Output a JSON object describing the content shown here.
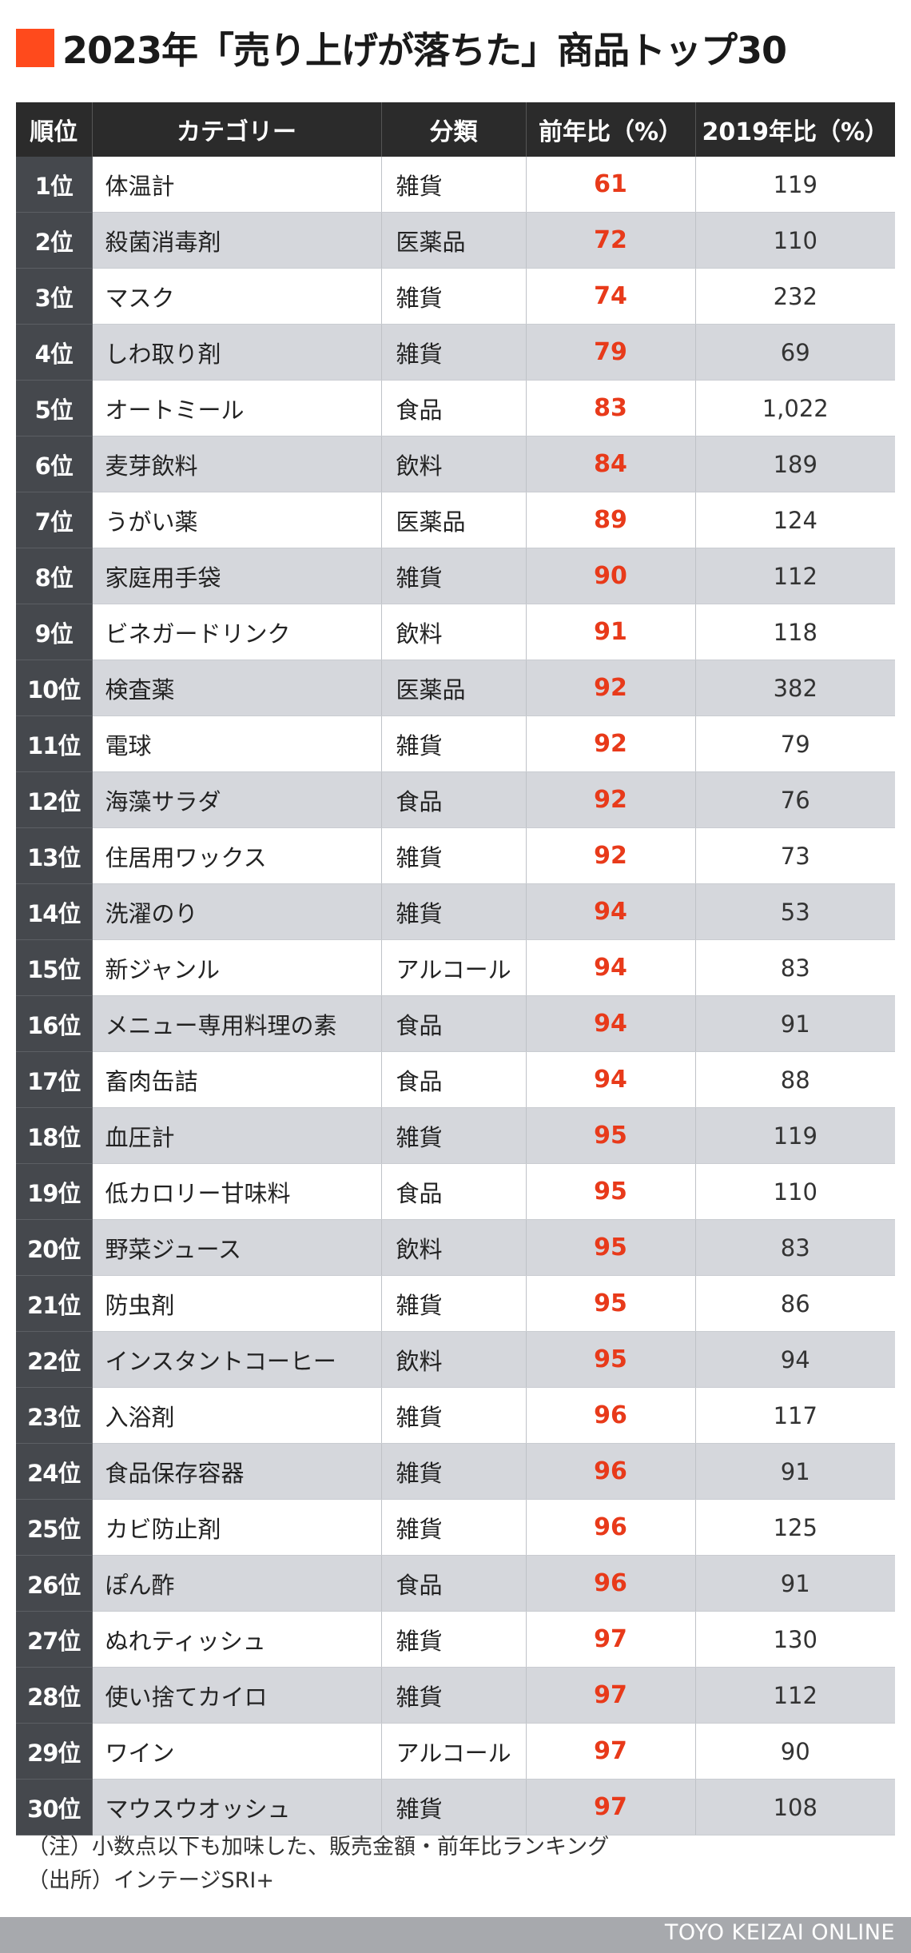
{
  "title": "2023年「売り上げが落ちた」商品トップ30",
  "table": {
    "headers": [
      "順位",
      "カテゴリー",
      "分類",
      "前年比（%）",
      "2019年比（%）"
    ],
    "rows": [
      {
        "rank": "1位",
        "category": "体温計",
        "class": "雑貨",
        "yoy": "61",
        "vs2019": "119"
      },
      {
        "rank": "2位",
        "category": "殺菌消毒剤",
        "class": "医薬品",
        "yoy": "72",
        "vs2019": "110"
      },
      {
        "rank": "3位",
        "category": "マスク",
        "class": "雑貨",
        "yoy": "74",
        "vs2019": "232"
      },
      {
        "rank": "4位",
        "category": "しわ取り剤",
        "class": "雑貨",
        "yoy": "79",
        "vs2019": "69"
      },
      {
        "rank": "5位",
        "category": "オートミール",
        "class": "食品",
        "yoy": "83",
        "vs2019": "1,022"
      },
      {
        "rank": "6位",
        "category": "麦芽飲料",
        "class": "飲料",
        "yoy": "84",
        "vs2019": "189"
      },
      {
        "rank": "7位",
        "category": "うがい薬",
        "class": "医薬品",
        "yoy": "89",
        "vs2019": "124"
      },
      {
        "rank": "8位",
        "category": "家庭用手袋",
        "class": "雑貨",
        "yoy": "90",
        "vs2019": "112"
      },
      {
        "rank": "9位",
        "category": "ビネガードリンク",
        "class": "飲料",
        "yoy": "91",
        "vs2019": "118"
      },
      {
        "rank": "10位",
        "category": "検査薬",
        "class": "医薬品",
        "yoy": "92",
        "vs2019": "382"
      },
      {
        "rank": "11位",
        "category": "電球",
        "class": "雑貨",
        "yoy": "92",
        "vs2019": "79"
      },
      {
        "rank": "12位",
        "category": "海藻サラダ",
        "class": "食品",
        "yoy": "92",
        "vs2019": "76"
      },
      {
        "rank": "13位",
        "category": "住居用ワックス",
        "class": "雑貨",
        "yoy": "92",
        "vs2019": "73"
      },
      {
        "rank": "14位",
        "category": "洗濯のり",
        "class": "雑貨",
        "yoy": "94",
        "vs2019": "53"
      },
      {
        "rank": "15位",
        "category": "新ジャンル",
        "class": "アルコール",
        "yoy": "94",
        "vs2019": "83"
      },
      {
        "rank": "16位",
        "category": "メニュー専用料理の素",
        "class": "食品",
        "yoy": "94",
        "vs2019": "91"
      },
      {
        "rank": "17位",
        "category": "畜肉缶詰",
        "class": "食品",
        "yoy": "94",
        "vs2019": "88"
      },
      {
        "rank": "18位",
        "category": "血圧計",
        "class": "雑貨",
        "yoy": "95",
        "vs2019": "119"
      },
      {
        "rank": "19位",
        "category": "低カロリー甘味料",
        "class": "食品",
        "yoy": "95",
        "vs2019": "110"
      },
      {
        "rank": "20位",
        "category": "野菜ジュース",
        "class": "飲料",
        "yoy": "95",
        "vs2019": "83"
      },
      {
        "rank": "21位",
        "category": "防虫剤",
        "class": "雑貨",
        "yoy": "95",
        "vs2019": "86"
      },
      {
        "rank": "22位",
        "category": "インスタントコーヒー",
        "class": "飲料",
        "yoy": "95",
        "vs2019": "94"
      },
      {
        "rank": "23位",
        "category": "入浴剤",
        "class": "雑貨",
        "yoy": "96",
        "vs2019": "117"
      },
      {
        "rank": "24位",
        "category": "食品保存容器",
        "class": "雑貨",
        "yoy": "96",
        "vs2019": "91"
      },
      {
        "rank": "25位",
        "category": "カビ防止剤",
        "class": "雑貨",
        "yoy": "96",
        "vs2019": "125"
      },
      {
        "rank": "26位",
        "category": "ぽん酢",
        "class": "食品",
        "yoy": "96",
        "vs2019": "91"
      },
      {
        "rank": "27位",
        "category": "ぬれティッシュ",
        "class": "雑貨",
        "yoy": "97",
        "vs2019": "130"
      },
      {
        "rank": "28位",
        "category": "使い捨てカイロ",
        "class": "雑貨",
        "yoy": "97",
        "vs2019": "112"
      },
      {
        "rank": "29位",
        "category": "ワイン",
        "class": "アルコール",
        "yoy": "97",
        "vs2019": "90"
      },
      {
        "rank": "30位",
        "category": "マウスウオッシュ",
        "class": "雑貨",
        "yoy": "97",
        "vs2019": "108"
      }
    ]
  },
  "notes": [
    "（注）小数点以下も加味した、販売金額・前年比ランキング",
    "（出所）インテージSRI+"
  ],
  "footer": "TOYO KEIZAI ONLINE",
  "colors": {
    "accent": "#ff4a1c",
    "yoy_text": "#e83a1a",
    "header_bg": "#2b2b2b",
    "rank_bg": "#45484d",
    "stripe": "#d5d7dc",
    "footer_bg": "#a7a9ad"
  }
}
